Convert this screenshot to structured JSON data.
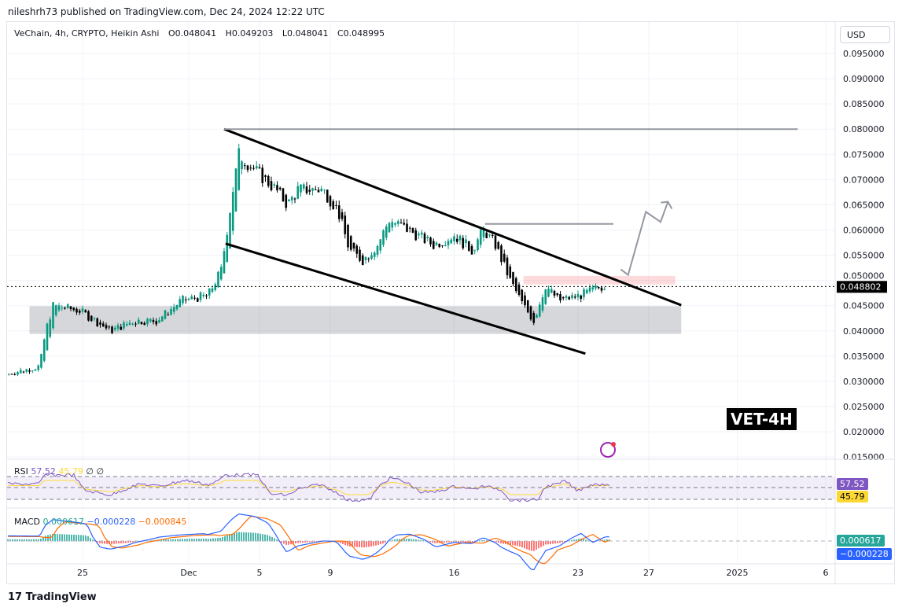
{
  "header": {
    "published": "nileshrh73 published on TradingView.com, Dec 24, 2024 12:22 UTC"
  },
  "legend": {
    "symbol": "VeChain, 4h, CRYPTO, Heikin Ashi",
    "open": "O0.048041",
    "high": "H0.049203",
    "low": "L0.048041",
    "close": "C0.048995"
  },
  "currency_button": "USD",
  "watermark_label": "VET-4H",
  "footer_logo": "TradingView",
  "rsi": {
    "label": "RSI",
    "value": "57.52",
    "ma": "45.79",
    "extra1": "∅",
    "extra2": "∅",
    "badge_value": "57.52",
    "badge_ma": "45.79",
    "color": "#7e57c2",
    "ma_color": "#fdd835"
  },
  "macd": {
    "label": "MACD",
    "hist": "0.000617",
    "macd": "−0.000228",
    "signal": "−0.000845",
    "badge_hist": "0.000617",
    "badge_macd": "−0.000228",
    "hist_color": "#26a69a",
    "macd_color": "#2962ff",
    "signal_color": "#ff6d00"
  },
  "chart_data": {
    "type": "candlestick",
    "style": "Heikin Ashi",
    "y_ticks": [
      "0.095000",
      "0.090000",
      "0.085000",
      "0.080000",
      "0.075000",
      "0.070000",
      "0.065000",
      "0.060000",
      "0.055000",
      "0.050000",
      "0.045000",
      "0.040000",
      "0.035000",
      "0.030000",
      "0.025000",
      "0.020000",
      "0.015000"
    ],
    "x_ticks": [
      {
        "label": "25",
        "date": "2024-11-25"
      },
      {
        "label": "Dec",
        "date": "2024-12-01"
      },
      {
        "label": "5",
        "date": "2024-12-05"
      },
      {
        "label": "9",
        "date": "2024-12-09"
      },
      {
        "label": "16",
        "date": "2024-12-16"
      },
      {
        "label": "23",
        "date": "2024-12-23"
      },
      {
        "label": "27",
        "date": "2024-12-27"
      },
      {
        "label": "2025",
        "date": "2025-01-01"
      },
      {
        "label": "6",
        "date": "2025-01-06"
      }
    ],
    "last_price": "0.048802",
    "up_color": "#089981",
    "down_color": "#000000",
    "price_path": [
      [
        "2024-11-20T20:00",
        0.0315
      ],
      [
        "2024-11-22T14:00",
        0.033
      ],
      [
        "2024-11-22T22:00",
        0.04
      ],
      [
        "2024-11-23T08:00",
        0.045
      ],
      [
        "2024-11-24T20:00",
        0.044
      ],
      [
        "2024-11-26T14:00",
        0.04
      ],
      [
        "2024-11-27T22:00",
        0.042
      ],
      [
        "2024-11-29T04:00",
        0.042
      ],
      [
        "2024-11-30T14:00",
        0.046
      ],
      [
        "2024-12-02T02:00",
        0.047
      ],
      [
        "2024-12-02T20:00",
        0.052
      ],
      [
        "2024-12-03T04:00",
        0.06
      ],
      [
        "2024-12-03T12:00",
        0.068
      ],
      [
        "2024-12-03T20:00",
        0.075
      ],
      [
        "2024-12-05T00:00",
        0.071
      ],
      [
        "2024-12-05T22:00",
        0.068
      ],
      [
        "2024-12-06T14:00",
        0.065
      ],
      [
        "2024-12-07T04:00",
        0.068
      ],
      [
        "2024-12-08T14:00",
        0.068
      ],
      [
        "2024-12-09T10:00",
        0.064
      ],
      [
        "2024-12-10T02:00",
        0.056
      ],
      [
        "2024-12-10T20:00",
        0.054
      ],
      [
        "2024-12-11T16:00",
        0.057
      ],
      [
        "2024-12-12T08:00",
        0.062
      ],
      [
        "2024-12-13T10:00",
        0.06
      ],
      [
        "2024-12-14T20:00",
        0.057
      ],
      [
        "2024-12-16T00:00",
        0.059
      ],
      [
        "2024-12-17T00:00",
        0.056
      ],
      [
        "2024-12-17T16:00",
        0.06
      ],
      [
        "2024-12-18T08:00",
        0.057
      ],
      [
        "2024-12-19T04:00",
        0.05
      ],
      [
        "2024-12-19T22:00",
        0.045
      ],
      [
        "2024-12-20T12:00",
        0.042
      ],
      [
        "2024-12-21T04:00",
        0.049
      ],
      [
        "2024-12-21T22:00",
        0.046
      ],
      [
        "2024-12-23T02:00",
        0.047
      ],
      [
        "2024-12-24T12:00",
        0.049
      ]
    ],
    "drawings": {
      "channel_upper": [
        [
          "2024-12-03T00:00",
          0.08
        ],
        [
          "2024-12-28T20:00",
          0.0451
        ]
      ],
      "channel_lower": [
        [
          "2024-12-03T02:00",
          0.0573
        ],
        [
          "2024-12-23T10:00",
          0.0355
        ]
      ],
      "level_high": [
        [
          "2024-12-03T00:00",
          0.08
        ],
        [
          "2025-01-04T10:00",
          0.08
        ]
      ],
      "level_resistance": [
        [
          "2024-12-17T18:00",
          0.0612
        ],
        [
          "2024-12-25T00:00",
          0.0612
        ]
      ],
      "support_zone": [
        [
          "2024-11-22T00:00",
          0.0449
        ],
        [
          "2024-12-28T20:00",
          0.0394
        ]
      ],
      "breakout_zone": [
        [
          "2024-12-19T22:00",
          0.0509
        ],
        [
          "2024-12-28T12:00",
          0.0492
        ]
      ],
      "projection": [
        [
          "2024-12-25T10:00",
          0.0522
        ],
        [
          "2024-12-25T20:00",
          0.0511
        ],
        [
          "2024-12-26T20:00",
          0.0636
        ],
        [
          "2024-12-27T16:00",
          0.0616
        ],
        [
          "2024-12-28T02:00",
          0.0656
        ]
      ]
    }
  }
}
